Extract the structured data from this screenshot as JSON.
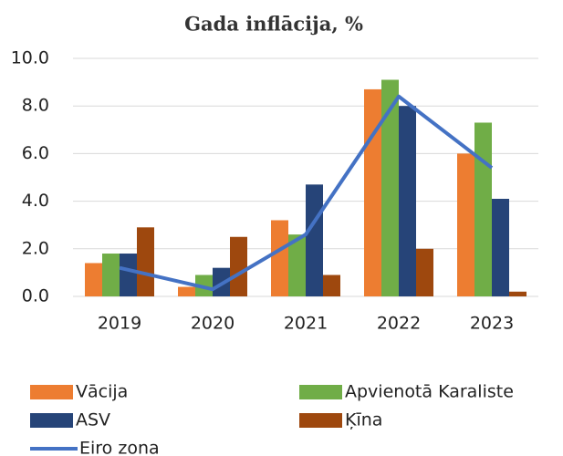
{
  "chart_data": {
    "type": "bar",
    "title": "Gada inflācija, %",
    "categories": [
      "2019",
      "2020",
      "2021",
      "2022",
      "2023"
    ],
    "series": [
      {
        "name": "Vācija",
        "color": "#ed7d31",
        "values": [
          1.4,
          0.4,
          3.2,
          8.7,
          6.0
        ]
      },
      {
        "name": "Apvienotā Karaliste",
        "color": "#70ad47",
        "values": [
          1.8,
          0.9,
          2.6,
          9.1,
          7.3
        ]
      },
      {
        "name": "ASV",
        "color": "#264478",
        "values": [
          1.8,
          1.2,
          4.7,
          8.0,
          4.1
        ]
      },
      {
        "name": "Ķīna",
        "color": "#9e480e",
        "values": [
          2.9,
          2.5,
          0.9,
          2.0,
          0.2
        ]
      },
      {
        "name": "Eiro zona",
        "color": "#4472c4",
        "type": "line",
        "values": [
          1.2,
          0.3,
          2.6,
          8.4,
          5.4
        ]
      }
    ],
    "ylim": [
      0,
      10
    ],
    "yticks": [
      {
        "value": 0,
        "label": "0.0"
      },
      {
        "value": 2,
        "label": "2.0"
      },
      {
        "value": 4,
        "label": "4.0"
      },
      {
        "value": 6,
        "label": "6.0"
      },
      {
        "value": 8,
        "label": "8.0"
      },
      {
        "value": 10,
        "label": "10.0"
      }
    ],
    "grid": true,
    "legend": "bottom"
  }
}
